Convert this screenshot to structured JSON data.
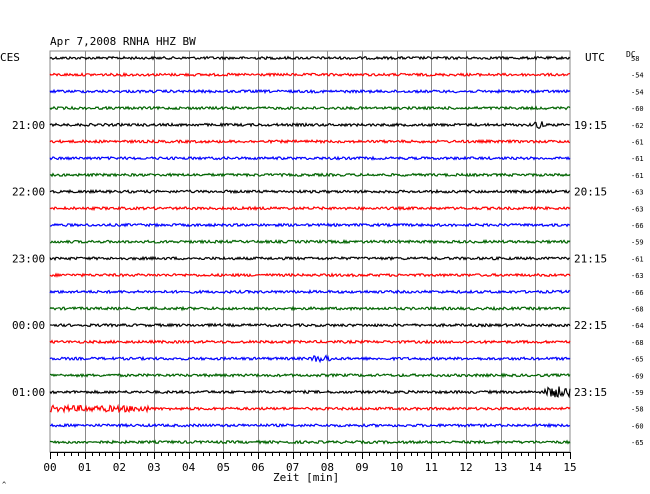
{
  "chart_data": {
    "type": "line",
    "title": "Apr 7,2008   RNHA HHZ BW",
    "left_timezone": "CES",
    "right_timezone": "UTC",
    "dc_label": "DC",
    "xlabel": "Zeit [min]",
    "xlim": [
      0,
      15
    ],
    "x_tick_labels": [
      "00",
      "01",
      "02",
      "03",
      "04",
      "05",
      "06",
      "07",
      "08",
      "09",
      "10",
      "11",
      "12",
      "13",
      "14",
      "15"
    ],
    "grid": true,
    "left_hour_labels": [
      "21:00",
      "22:00",
      "23:00",
      "00:00",
      "01:00"
    ],
    "right_hour_labels": [
      "19:15",
      "20:15",
      "21:15",
      "22:15",
      "23:15"
    ],
    "dc_offsets": [
      58,
      -54,
      -54,
      -60,
      -62,
      -61,
      -61,
      -61,
      -63,
      -63,
      -66,
      -59,
      -61,
      -63,
      -66,
      -68,
      -64,
      -68,
      -65,
      -69,
      -59,
      -58,
      -60,
      -65
    ],
    "trace_colors": [
      "#000000",
      "#ff0000",
      "#0000ff",
      "#006400"
    ],
    "footer_mark": "^"
  }
}
